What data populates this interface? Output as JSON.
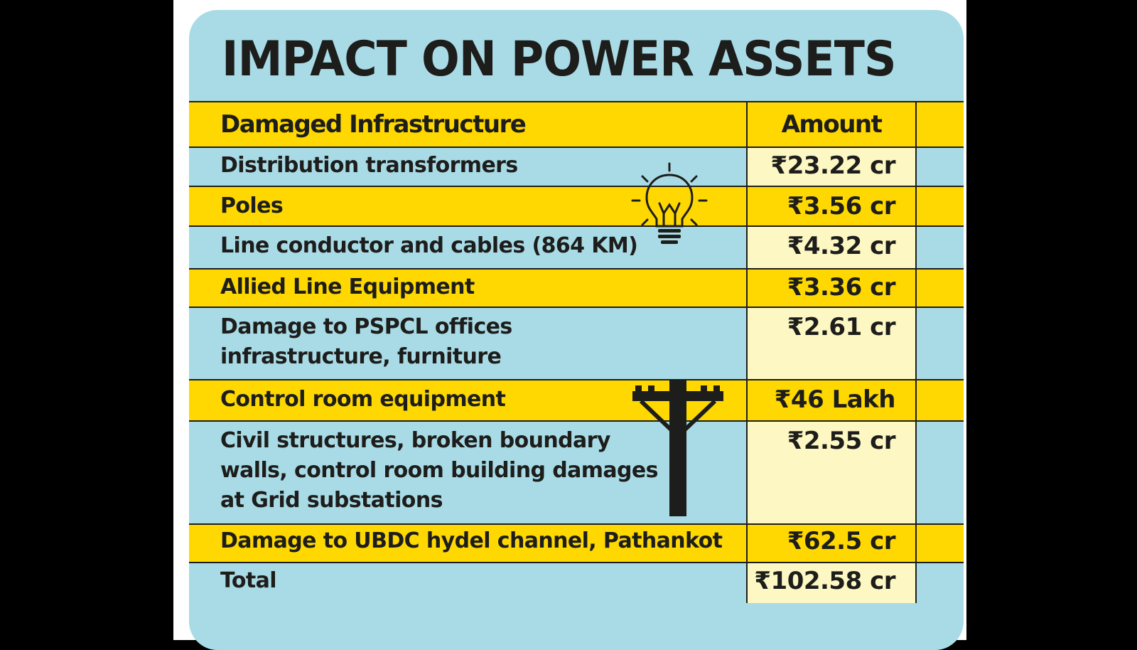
{
  "title": "IMPACT ON POWER ASSETS",
  "columns": {
    "infrastructure": "Damaged Infrastructure",
    "amount": "Amount"
  },
  "rows": [
    {
      "label": [
        "Distribution transformers"
      ],
      "amount": "₹23.22 cr"
    },
    {
      "label": [
        "Poles"
      ],
      "amount": "₹3.56 cr"
    },
    {
      "label": [
        "Line conductor and cables (864 KM)"
      ],
      "amount": "₹4.32 cr"
    },
    {
      "label": [
        "Allied Line Equipment"
      ],
      "amount": "₹3.36 cr"
    },
    {
      "label": [
        "Damage to PSPCL offices",
        "infrastructure, furniture"
      ],
      "amount": "₹2.61 cr"
    },
    {
      "label": [
        "Control room equipment"
      ],
      "amount": "₹46 Lakh"
    },
    {
      "label": [
        "Civil structures, broken boundary",
        "walls, control room building damages",
        "at Grid substations"
      ],
      "amount": "₹2.55 cr"
    },
    {
      "label": [
        "Damage to UBDC hydel channel, Pathankot"
      ],
      "amount": "₹62.5 cr"
    }
  ],
  "total": {
    "label": "Total",
    "amount": "₹102.58 cr"
  },
  "icons": [
    "lightbulb-icon",
    "utility-pole-icon"
  ],
  "colors": {
    "background": "#a9dbe6",
    "band": "#fed800",
    "amount_cell": "#fdf7c3",
    "text": "#1d1d1b"
  }
}
